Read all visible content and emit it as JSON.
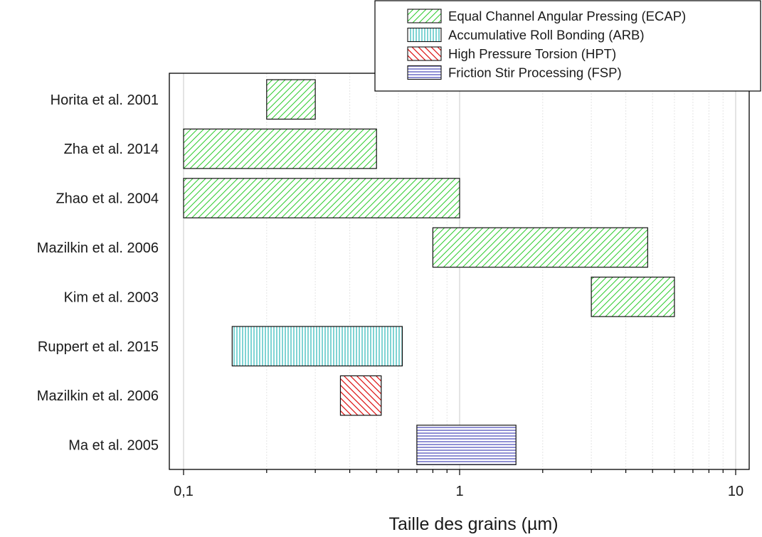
{
  "chart_data": {
    "type": "bar",
    "orientation": "horizontal-range",
    "xlabel": "Taille des grains (µm)",
    "xscale": "log",
    "xlim": [
      0.1,
      10
    ],
    "xticks": [
      {
        "value": 0.1,
        "label": "0,1"
      },
      {
        "value": 1,
        "label": "1"
      },
      {
        "value": 10,
        "label": "10"
      }
    ],
    "grid": "vertical major and minor lines",
    "legend_position": "top-right",
    "categories": [
      "Horita et al. 2001",
      "Zha et al. 2014",
      "Zhao et al. 2004",
      "Mazilkin et al. 2006",
      "Kim et al. 2003",
      "Ruppert et al. 2015",
      "Mazilkin et al. 2006",
      "Ma et al. 2005"
    ],
    "series": [
      {
        "name": "Equal Channel Angular Pressing (ECAP)",
        "color": "#2ecc2e",
        "pattern": "hatch-forward",
        "ranges": [
          {
            "category_index": 0,
            "start": 0.2,
            "end": 0.3
          },
          {
            "category_index": 1,
            "start": 0.1,
            "end": 0.5
          },
          {
            "category_index": 2,
            "start": 0.1,
            "end": 1.0
          },
          {
            "category_index": 3,
            "start": 0.8,
            "end": 4.8
          },
          {
            "category_index": 4,
            "start": 3.0,
            "end": 6.0
          }
        ]
      },
      {
        "name": "Accumulative Roll Bonding (ARB)",
        "color": "#00aaaa",
        "pattern": "vertical-lines",
        "ranges": [
          {
            "category_index": 5,
            "start": 0.15,
            "end": 0.62
          }
        ]
      },
      {
        "name": "High Pressure Torsion (HPT)",
        "color": "#dd1111",
        "pattern": "hatch-backward",
        "ranges": [
          {
            "category_index": 6,
            "start": 0.37,
            "end": 0.52
          }
        ]
      },
      {
        "name": "Friction Stir Processing (FSP)",
        "color": "#2222aa",
        "pattern": "horizontal-lines",
        "ranges": [
          {
            "category_index": 7,
            "start": 0.7,
            "end": 1.6
          }
        ]
      }
    ]
  }
}
